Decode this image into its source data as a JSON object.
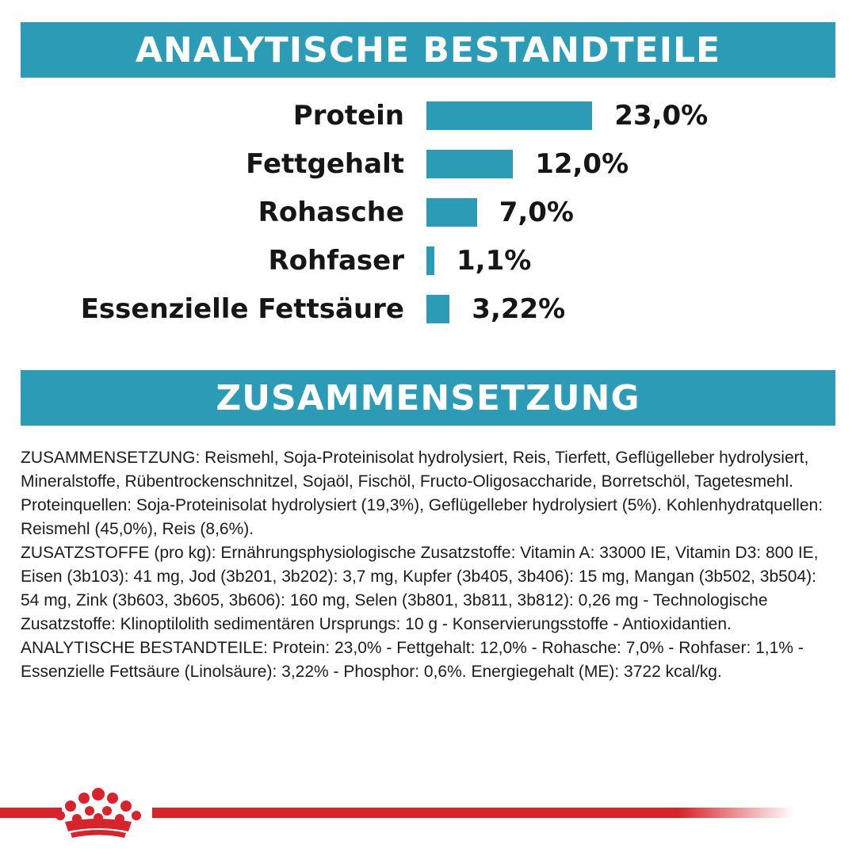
{
  "analysis_banner": {
    "title": "ANALYTISCHE BESTANDTEILE"
  },
  "chart_data": {
    "type": "bar",
    "orientation": "horizontal",
    "categories": [
      "Protein",
      "Fettgehalt",
      "Rohasche",
      "Rohfaser",
      "Essenzielle Fettsäure"
    ],
    "values": [
      23.0,
      12.0,
      7.0,
      1.1,
      3.22
    ],
    "value_labels": [
      "23,0%",
      "12,0%",
      "7,0%",
      "1,1%",
      "3,22%"
    ],
    "unit": "%",
    "bar_color": "#2c9bb6",
    "grid": false,
    "legend": "none"
  },
  "composition_banner": {
    "title": "ZUSAMMENSETZUNG"
  },
  "composition": {
    "paragraphs": [
      "ZUSAMMENSETZUNG: Reismehl, Soja-Proteinisolat hydrolysiert, Reis, Tierfett, Geflügelleber hydrolysiert, Mineralstoffe, Rübentrockenschnitzel, Sojaöl, Fischöl, Fructo-Oligosaccharide, Borretschöl, Tagetesmehl. Proteinquellen: Soja-Proteinisolat hydrolysiert (19,3%), Geflügelleber hydrolysiert (5%). Kohlenhydratquellen: Reismehl (45,0%), Reis (8,6%).",
      "ZUSATZSTOFFE (pro kg): Ernährungsphysiologische Zusatzstoffe: Vitamin A: 33000 IE, Vitamin D3: 800 IE, Eisen (3b103): 41 mg, Jod (3b201, 3b202): 3,7 mg, Kupfer (3b405, 3b406): 15 mg, Mangan (3b502, 3b504): 54 mg, Zink (3b603, 3b605, 3b606): 160 mg, Selen (3b801, 3b811, 3b812): 0,26 mg - Technologische Zusatzstoffe: Klinoptilolith sedimentären Ursprungs: 10 g - Konservierungsstoffe - Antioxidantien.",
      "ANALYTISCHE BESTANDTEILE: Protein: 23,0% - Fettgehalt: 12,0% - Rohasche: 7,0% - Rohfaser: 1,1% - Essenzielle Fettsäure (Linolsäure): 3,22% - Phosphor: 0,6%. Energiegehalt (ME): 3722 kcal/kg."
    ]
  },
  "footer": {
    "logo_icon": "crown-icon",
    "accent_color": "#d9232b"
  }
}
